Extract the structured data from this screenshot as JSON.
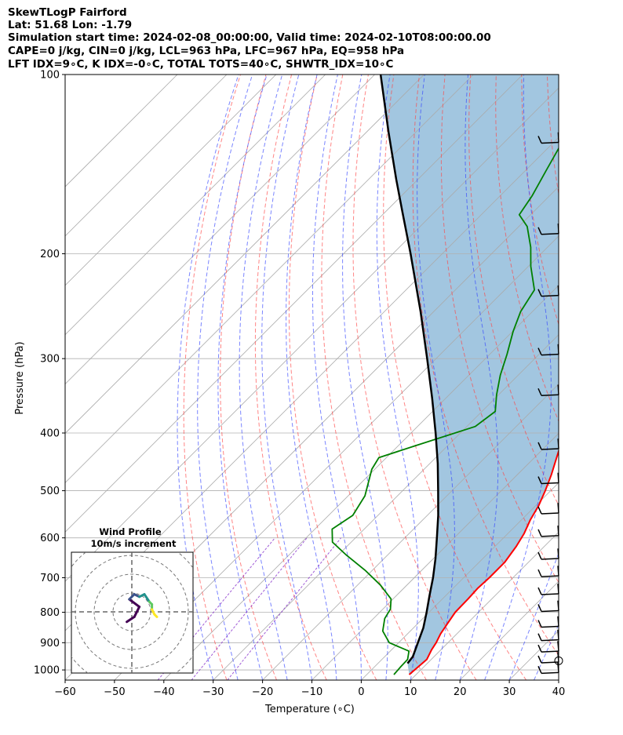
{
  "header": {
    "line1": "SkewTLogP Fairford",
    "line2": "Lat: 51.68   Lon: -1.79",
    "line3": "Simulation start time: 2024-02-08_00:00:00, Valid time: 2024-02-10T08:00:00.00",
    "line4": "CAPE=0 j/kg, CIN=0 j/kg, LCL=963 hPa, LFC=967 hPa, EQ=958 hPa",
    "line5": "LFT IDX=9∘C, K IDX=-0∘C, TOTAL TOTS=40∘C, SHWTR_IDX=10∘C"
  },
  "colors": {
    "temperature": "#ff0000",
    "dewpoint": "#008000",
    "parcel": "#000000",
    "cape_fill": "#a2c6e0",
    "isotherms": "#aaaaaa",
    "dry_adiabats": "#ff4444",
    "moist_adiabats": "#3344ff",
    "mixing_ratio": "#8833cc",
    "hodograph_cmap": [
      "#440154",
      "#3b528b",
      "#21918c",
      "#5ec962",
      "#fde725"
    ]
  },
  "chart_data": [
    {
      "type": "line",
      "title": "",
      "xlabel": "Temperature (∘C)",
      "ylabel": "Pressure (hPa)",
      "xlim": [
        -60,
        40
      ],
      "ylim": [
        1040,
        100
      ],
      "yscale": "log",
      "skew": true,
      "grid": true,
      "x_ticks": [
        "−60",
        "−50",
        "−40",
        "−30",
        "−20",
        "−10",
        "0",
        "10",
        "20",
        "30",
        "40"
      ],
      "y_ticks": [
        "100",
        "200",
        "300",
        "400",
        "500",
        "600",
        "700",
        "800",
        "900",
        "1000"
      ],
      "series": [
        {
          "name": "",
          "points": [
            [
              1018,
              8.6
            ],
            [
              960,
              9.1
            ],
            [
              925,
              8.1
            ],
            [
              900,
              7.6
            ],
            [
              870,
              6.7
            ],
            [
              840,
              6.1
            ],
            [
              800,
              5.3
            ],
            [
              760,
              5.2
            ],
            [
              730,
              5.0
            ],
            [
              700,
              5.2
            ],
            [
              660,
              5.2
            ],
            [
              620,
              4.3
            ],
            [
              590,
              3.3
            ],
            [
              560,
              1.8
            ],
            [
              530,
              0.6
            ],
            [
              500,
              -1.1
            ],
            [
              470,
              -3.1
            ],
            [
              440,
              -5.5
            ],
            [
              410,
              -8.0
            ],
            [
              380,
              -11.4
            ],
            [
              360,
              -13.9
            ],
            [
              340,
              -16.6
            ],
            [
              315,
              -19.9
            ],
            [
              300,
              -22.7
            ],
            [
              285,
              -24.7
            ],
            [
              265,
              -27.3
            ],
            [
              250,
              -29.6
            ],
            [
              235,
              -32.6
            ],
            [
              220,
              -36.1
            ],
            [
              205,
              -39.7
            ],
            [
              190,
              -43.6
            ],
            [
              175,
              -47.3
            ],
            [
              165,
              -49.9
            ],
            [
              155,
              -52.6
            ],
            [
              145,
              -55.8
            ],
            [
              135,
              -59.3
            ],
            [
              125,
              -62.8
            ],
            [
              116,
              -66.1
            ],
            [
              108,
              -69.4
            ],
            [
              100,
              -72.8
            ]
          ]
        },
        {
          "name": "",
          "points": [
            [
              1018,
              5.5
            ],
            [
              990,
              5.3
            ],
            [
              960,
              5.2
            ],
            [
              930,
              3.8
            ],
            [
              900,
              -1.9
            ],
            [
              860,
              -5.6
            ],
            [
              820,
              -7.7
            ],
            [
              790,
              -8.5
            ],
            [
              760,
              -10.4
            ],
            [
              720,
              -15.4
            ],
            [
              680,
              -21.5
            ],
            [
              640,
              -28.6
            ],
            [
              610,
              -33.8
            ],
            [
              580,
              -36.5
            ],
            [
              550,
              -35.1
            ],
            [
              510,
              -36.6
            ],
            [
              460,
              -40.6
            ],
            [
              440,
              -41.5
            ],
            [
              420,
              -36.5
            ],
            [
              390,
              -28.3
            ],
            [
              368,
              -27.3
            ],
            [
              345,
              -30.4
            ],
            [
              320,
              -33.6
            ],
            [
              295,
              -36.5
            ],
            [
              270,
              -39.9
            ],
            [
              250,
              -42.4
            ],
            [
              230,
              -44.0
            ],
            [
              210,
              -49.5
            ],
            [
              195,
              -53.4
            ],
            [
              180,
              -58.3
            ],
            [
              172,
              -62.3
            ],
            [
              160,
              -63.5
            ],
            [
              145,
              -65.8
            ],
            [
              125,
              -69.2
            ],
            [
              100,
              -72.3
            ]
          ]
        },
        {
          "name": "",
          "points": [
            [
              975,
              6.0
            ],
            [
              950,
              5.7
            ],
            [
              900,
              3.9
            ],
            [
              850,
              2.0
            ],
            [
              800,
              -0.5
            ],
            [
              750,
              -3.3
            ],
            [
              700,
              -6.2
            ],
            [
              650,
              -9.6
            ],
            [
              600,
              -13.5
            ],
            [
              550,
              -17.8
            ],
            [
              500,
              -22.8
            ],
            [
              450,
              -28.4
            ],
            [
              400,
              -35.0
            ],
            [
              350,
              -42.7
            ],
            [
              300,
              -51.8
            ],
            [
              250,
              -62.7
            ],
            [
              200,
              -76.4
            ],
            [
              170,
              -86.6
            ],
            [
              150,
              -94.4
            ],
            [
              125,
              -105.5
            ],
            [
              100,
              -118.8
            ]
          ]
        }
      ],
      "annotations": [
        "Pressure (hPa)"
      ]
    },
    {
      "type": "line",
      "title": "Wind Profile",
      "subtitle": "10m/s increment",
      "xlabel": "",
      "ylabel": "",
      "grid": true,
      "series": [
        {
          "name": "",
          "points": [
            [
              -2,
              -4
            ],
            [
              1,
              -2
            ],
            [
              3,
              2
            ],
            [
              -1,
              5
            ],
            [
              1,
              7
            ],
            [
              3,
              6
            ],
            [
              5,
              7
            ],
            [
              7,
              4
            ],
            [
              8,
              3
            ],
            [
              8,
              1
            ],
            [
              9,
              -1
            ],
            [
              10,
              -2
            ]
          ]
        }
      ]
    }
  ]
}
